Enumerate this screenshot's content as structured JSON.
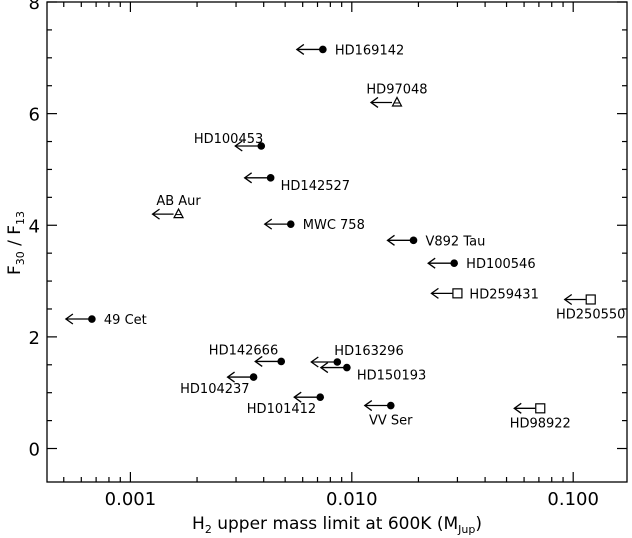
{
  "chart_data": {
    "type": "scatter",
    "x_scale": "log",
    "xlim": [
      0.00042,
      0.175
    ],
    "ylim": [
      -0.6,
      8.0
    ],
    "xlabel": {
      "main": "H",
      "sub1": "2",
      "rest": " upper mass limit at 600K (M",
      "sub2": "Jup",
      "close": ")"
    },
    "ylabel": {
      "main": "F",
      "sub1": "30",
      "mid": " / F",
      "sub2": "13"
    },
    "x_ticks": [
      {
        "value": 0.001,
        "label": "0.001"
      },
      {
        "value": 0.01,
        "label": "0.010"
      },
      {
        "value": 0.1,
        "label": "0.100"
      }
    ],
    "y_ticks": [
      {
        "value": 0,
        "label": "0"
      },
      {
        "value": 2,
        "label": "2"
      },
      {
        "value": 4,
        "label": "4"
      },
      {
        "value": 6,
        "label": "6"
      },
      {
        "value": 8,
        "label": "8"
      }
    ],
    "points": [
      {
        "name": "HD169142",
        "x": 0.0074,
        "y": 7.15,
        "marker": "circle",
        "label_pos": "right"
      },
      {
        "name": "HD97048",
        "x": 0.016,
        "y": 6.2,
        "marker": "triangle",
        "label_pos": "above"
      },
      {
        "name": "HD100453",
        "x": 0.0039,
        "y": 5.42,
        "marker": "circle",
        "label_pos": "above-right"
      },
      {
        "name": "HD142527",
        "x": 0.0043,
        "y": 4.85,
        "marker": "circle",
        "label_pos": "below-right"
      },
      {
        "name": "AB Aur",
        "x": 0.00165,
        "y": 4.2,
        "marker": "triangle",
        "label_pos": "above"
      },
      {
        "name": "MWC 758",
        "x": 0.0053,
        "y": 4.02,
        "marker": "circle",
        "label_pos": "right"
      },
      {
        "name": "V892 Tau",
        "x": 0.019,
        "y": 3.73,
        "marker": "circle",
        "label_pos": "right"
      },
      {
        "name": "HD100546",
        "x": 0.029,
        "y": 3.32,
        "marker": "circle",
        "label_pos": "right"
      },
      {
        "name": "HD259431",
        "x": 0.03,
        "y": 2.78,
        "marker": "square",
        "label_pos": "right"
      },
      {
        "name": "HD250550",
        "x": 0.12,
        "y": 2.67,
        "marker": "square",
        "label_pos": "below"
      },
      {
        "name": "49 Cet",
        "x": 0.00067,
        "y": 2.32,
        "marker": "circle",
        "label_pos": "right"
      },
      {
        "name": "HD142666",
        "x": 0.0048,
        "y": 1.56,
        "marker": "circle",
        "label_pos": "above-left"
      },
      {
        "name": "HD163296",
        "x": 0.0086,
        "y": 1.55,
        "marker": "circle",
        "label_pos": "above-right"
      },
      {
        "name": "HD150193",
        "x": 0.0095,
        "y": 1.45,
        "marker": "circle",
        "label_pos": "below-right"
      },
      {
        "name": "HD104237",
        "x": 0.0036,
        "y": 1.28,
        "marker": "circle",
        "label_pos": "below-left"
      },
      {
        "name": "HD101412",
        "x": 0.0072,
        "y": 0.92,
        "marker": "circle",
        "label_pos": "below-left"
      },
      {
        "name": "VV Ser",
        "x": 0.015,
        "y": 0.77,
        "marker": "circle",
        "label_pos": "below"
      },
      {
        "name": "HD98922",
        "x": 0.071,
        "y": 0.72,
        "marker": "square",
        "label_pos": "below"
      }
    ],
    "upper_limit_arrows": true,
    "grid": false,
    "legend": "none"
  }
}
